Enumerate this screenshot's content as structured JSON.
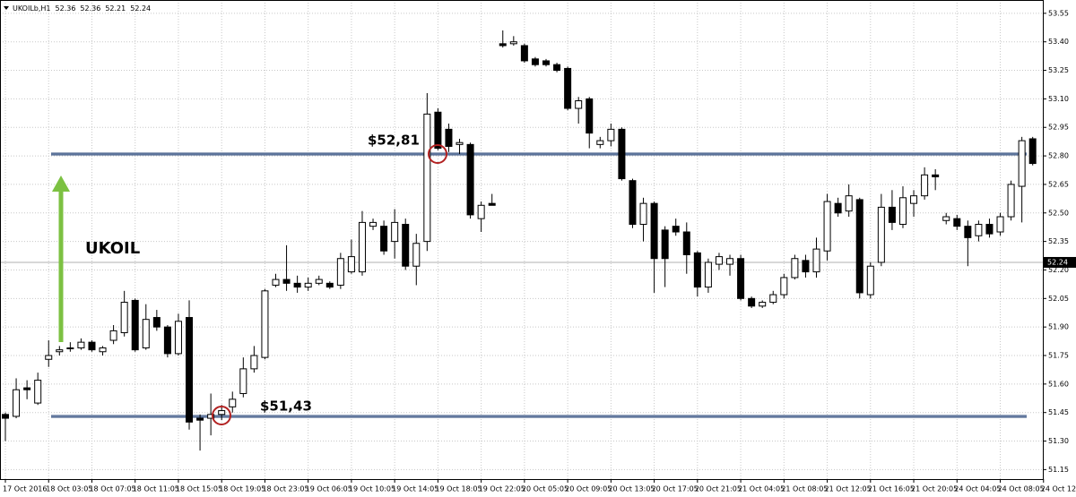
{
  "chart_data": {
    "type": "candlestick",
    "symbol": "UKOILb,H1",
    "header_ohlc": [
      52.36,
      52.36,
      52.21,
      52.24
    ],
    "annotation": "UKOIL",
    "last_price": 52.24,
    "up_color": "#ffffff",
    "down_color": "#000000",
    "level_color": "#2e4a7a",
    "grid": true,
    "levels": [
      {
        "value": 52.81,
        "label": "$52,81"
      },
      {
        "value": 51.43,
        "label": "$51,43"
      }
    ],
    "ylim": [
      51.1,
      53.62
    ],
    "yticks": [
      53.55,
      {
        "value": 53.4,
        "label": "53.40"
      },
      53.25,
      {
        "value": 53.1,
        "label": "53.10"
      },
      52.95,
      {
        "value": 52.8,
        "label": "52.80"
      },
      52.65,
      {
        "value": 52.5,
        "label": "52.50"
      },
      52.35,
      {
        "value": 52.2,
        "label": "52.20"
      },
      52.05,
      {
        "value": 51.9,
        "label": "51.90"
      },
      51.75,
      {
        "value": 51.6,
        "label": "51.60"
      },
      51.45,
      {
        "value": 51.3,
        "label": "51.30"
      },
      51.15
    ],
    "categories": [
      "17 Oct 2016",
      null,
      null,
      null,
      "18 Oct 03:05",
      null,
      null,
      null,
      "18 Oct 07:05",
      null,
      null,
      null,
      "18 Oct 11:05",
      null,
      null,
      null,
      "18 Oct 15:05",
      null,
      null,
      null,
      "18 Oct 19:05",
      null,
      null,
      null,
      "18 Oct 23:05",
      null,
      null,
      null,
      "19 Oct 06:05",
      null,
      null,
      null,
      "19 Oct 10:05",
      null,
      null,
      null,
      "19 Oct 14:05",
      null,
      null,
      null,
      "19 Oct 18:05",
      null,
      null,
      null,
      "19 Oct 22:05",
      null,
      null,
      null,
      "20 Oct 05:05",
      null,
      null,
      null,
      "20 Oct 09:05",
      null,
      null,
      null,
      "20 Oct 13:05",
      null,
      null,
      null,
      "20 Oct 17:05",
      null,
      null,
      null,
      "20 Oct 21:05",
      null,
      null,
      null,
      "21 Oct 04:05",
      null,
      null,
      null,
      "21 Oct 08:05",
      null,
      null,
      null,
      "21 Oct 12:05",
      null,
      null,
      null,
      "21 Oct 16:05",
      null,
      null,
      null,
      "21 Oct 20:05",
      null,
      null,
      null,
      "24 Oct 04:05",
      null,
      null,
      null,
      "24 Oct 08:05",
      null,
      null,
      null,
      "24 Oct 12:"
    ],
    "open": [
      51.44,
      51.43,
      51.58,
      51.5,
      51.73,
      51.77,
      51.79,
      51.79,
      51.82,
      51.77,
      51.83,
      51.87,
      52.04,
      51.79,
      51.95,
      51.9,
      51.76,
      51.95,
      51.42,
      51.42,
      51.44,
      51.48,
      51.55,
      51.68,
      51.74,
      52.12,
      52.15,
      52.13,
      52.11,
      52.13,
      52.13,
      52.12,
      52.19,
      52.19,
      52.43,
      52.43,
      52.35,
      52.44,
      52.22,
      52.35,
      53.03,
      52.94,
      52.86,
      52.86,
      52.47,
      52.55,
      53.39,
      53.39,
      53.38,
      53.31,
      53.3,
      53.28,
      53.26,
      53.05,
      53.1,
      52.86,
      52.88,
      52.94,
      52.67,
      52.44,
      52.55,
      52.41,
      52.43,
      52.4,
      52.29,
      52.11,
      52.23,
      52.23,
      52.26,
      52.05,
      52.01,
      52.03,
      52.07,
      52.16,
      52.25,
      52.19,
      52.3,
      52.55,
      52.51,
      52.57,
      52.07,
      52.24,
      52.53,
      52.44,
      52.55,
      52.59,
      52.7,
      52.46,
      52.47,
      52.43,
      52.38,
      52.44,
      52.4,
      52.48,
      52.64,
      52.89,
      null
    ],
    "high": [
      51.45,
      51.63,
      51.62,
      51.66,
      51.83,
      51.8,
      51.82,
      51.84,
      51.83,
      51.8,
      51.91,
      52.09,
      52.05,
      52.02,
      51.99,
      51.91,
      51.97,
      52.04,
      51.44,
      51.55,
      51.49,
      51.56,
      51.74,
      51.8,
      52.1,
      52.18,
      52.33,
      52.17,
      52.16,
      52.17,
      52.14,
      52.29,
      52.36,
      52.51,
      52.47,
      52.46,
      52.52,
      52.47,
      52.39,
      53.13,
      53.05,
      52.97,
      52.89,
      52.87,
      52.56,
      52.6,
      53.46,
      53.43,
      53.39,
      53.32,
      53.31,
      53.29,
      53.27,
      53.11,
      53.11,
      52.9,
      52.97,
      52.95,
      52.68,
      52.58,
      52.56,
      52.43,
      52.47,
      52.45,
      52.3,
      52.26,
      52.29,
      52.28,
      52.28,
      52.06,
      52.04,
      52.09,
      52.18,
      52.28,
      52.28,
      52.37,
      52.6,
      52.58,
      52.65,
      52.58,
      52.24,
      52.6,
      52.62,
      52.64,
      52.62,
      52.74,
      52.73,
      52.5,
      52.49,
      52.46,
      52.46,
      52.47,
      52.5,
      52.67,
      52.9,
      52.9,
      null
    ],
    "low": [
      51.3,
      51.42,
      51.52,
      51.49,
      51.69,
      51.75,
      51.77,
      51.78,
      51.77,
      51.75,
      51.81,
      51.85,
      51.77,
      51.78,
      51.88,
      51.74,
      51.75,
      51.36,
      51.25,
      51.33,
      51.41,
      51.45,
      51.53,
      51.66,
      51.73,
      52.11,
      52.09,
      52.08,
      52.09,
      52.12,
      52.1,
      52.1,
      52.18,
      52.17,
      52.41,
      52.28,
      52.26,
      52.2,
      52.12,
      52.3,
      52.83,
      52.82,
      52.81,
      52.47,
      52.4,
      52.54,
      53.37,
      53.38,
      53.29,
      53.27,
      53.27,
      53.24,
      53.04,
      52.97,
      52.84,
      52.84,
      52.85,
      52.67,
      52.42,
      52.35,
      52.08,
      52.11,
      52.38,
      52.18,
      52.06,
      52.08,
      52.2,
      52.17,
      52.04,
      52.0,
      52.0,
      52.02,
      52.05,
      52.15,
      52.16,
      52.16,
      52.25,
      52.48,
      52.48,
      52.05,
      52.05,
      52.22,
      52.41,
      52.42,
      52.48,
      52.57,
      52.62,
      52.44,
      52.41,
      52.22,
      52.35,
      52.37,
      52.38,
      52.46,
      52.45,
      52.75,
      null
    ],
    "close": [
      51.42,
      51.57,
      51.57,
      51.62,
      51.75,
      51.78,
      51.79,
      51.82,
      51.78,
      51.79,
      51.88,
      52.03,
      51.78,
      51.94,
      51.9,
      51.76,
      51.93,
      51.4,
      51.41,
      51.44,
      51.46,
      51.52,
      51.68,
      51.75,
      52.09,
      52.15,
      52.13,
      52.11,
      52.13,
      52.15,
      52.11,
      52.26,
      52.27,
      52.45,
      52.45,
      52.3,
      52.45,
      52.22,
      52.34,
      53.02,
      52.84,
      52.85,
      52.87,
      52.49,
      52.54,
      52.54,
      53.38,
      53.4,
      53.3,
      53.28,
      53.28,
      53.25,
      53.05,
      53.09,
      52.92,
      52.88,
      52.94,
      52.68,
      52.44,
      52.55,
      52.26,
      52.26,
      52.4,
      52.28,
      52.11,
      52.24,
      52.27,
      52.26,
      52.05,
      52.01,
      52.03,
      52.07,
      52.16,
      52.26,
      52.19,
      52.31,
      52.56,
      52.5,
      52.59,
      52.08,
      52.22,
      52.53,
      52.45,
      52.58,
      52.59,
      52.7,
      52.69,
      52.48,
      52.43,
      52.37,
      52.44,
      52.39,
      52.48,
      52.65,
      52.88,
      52.76,
      null
    ]
  }
}
